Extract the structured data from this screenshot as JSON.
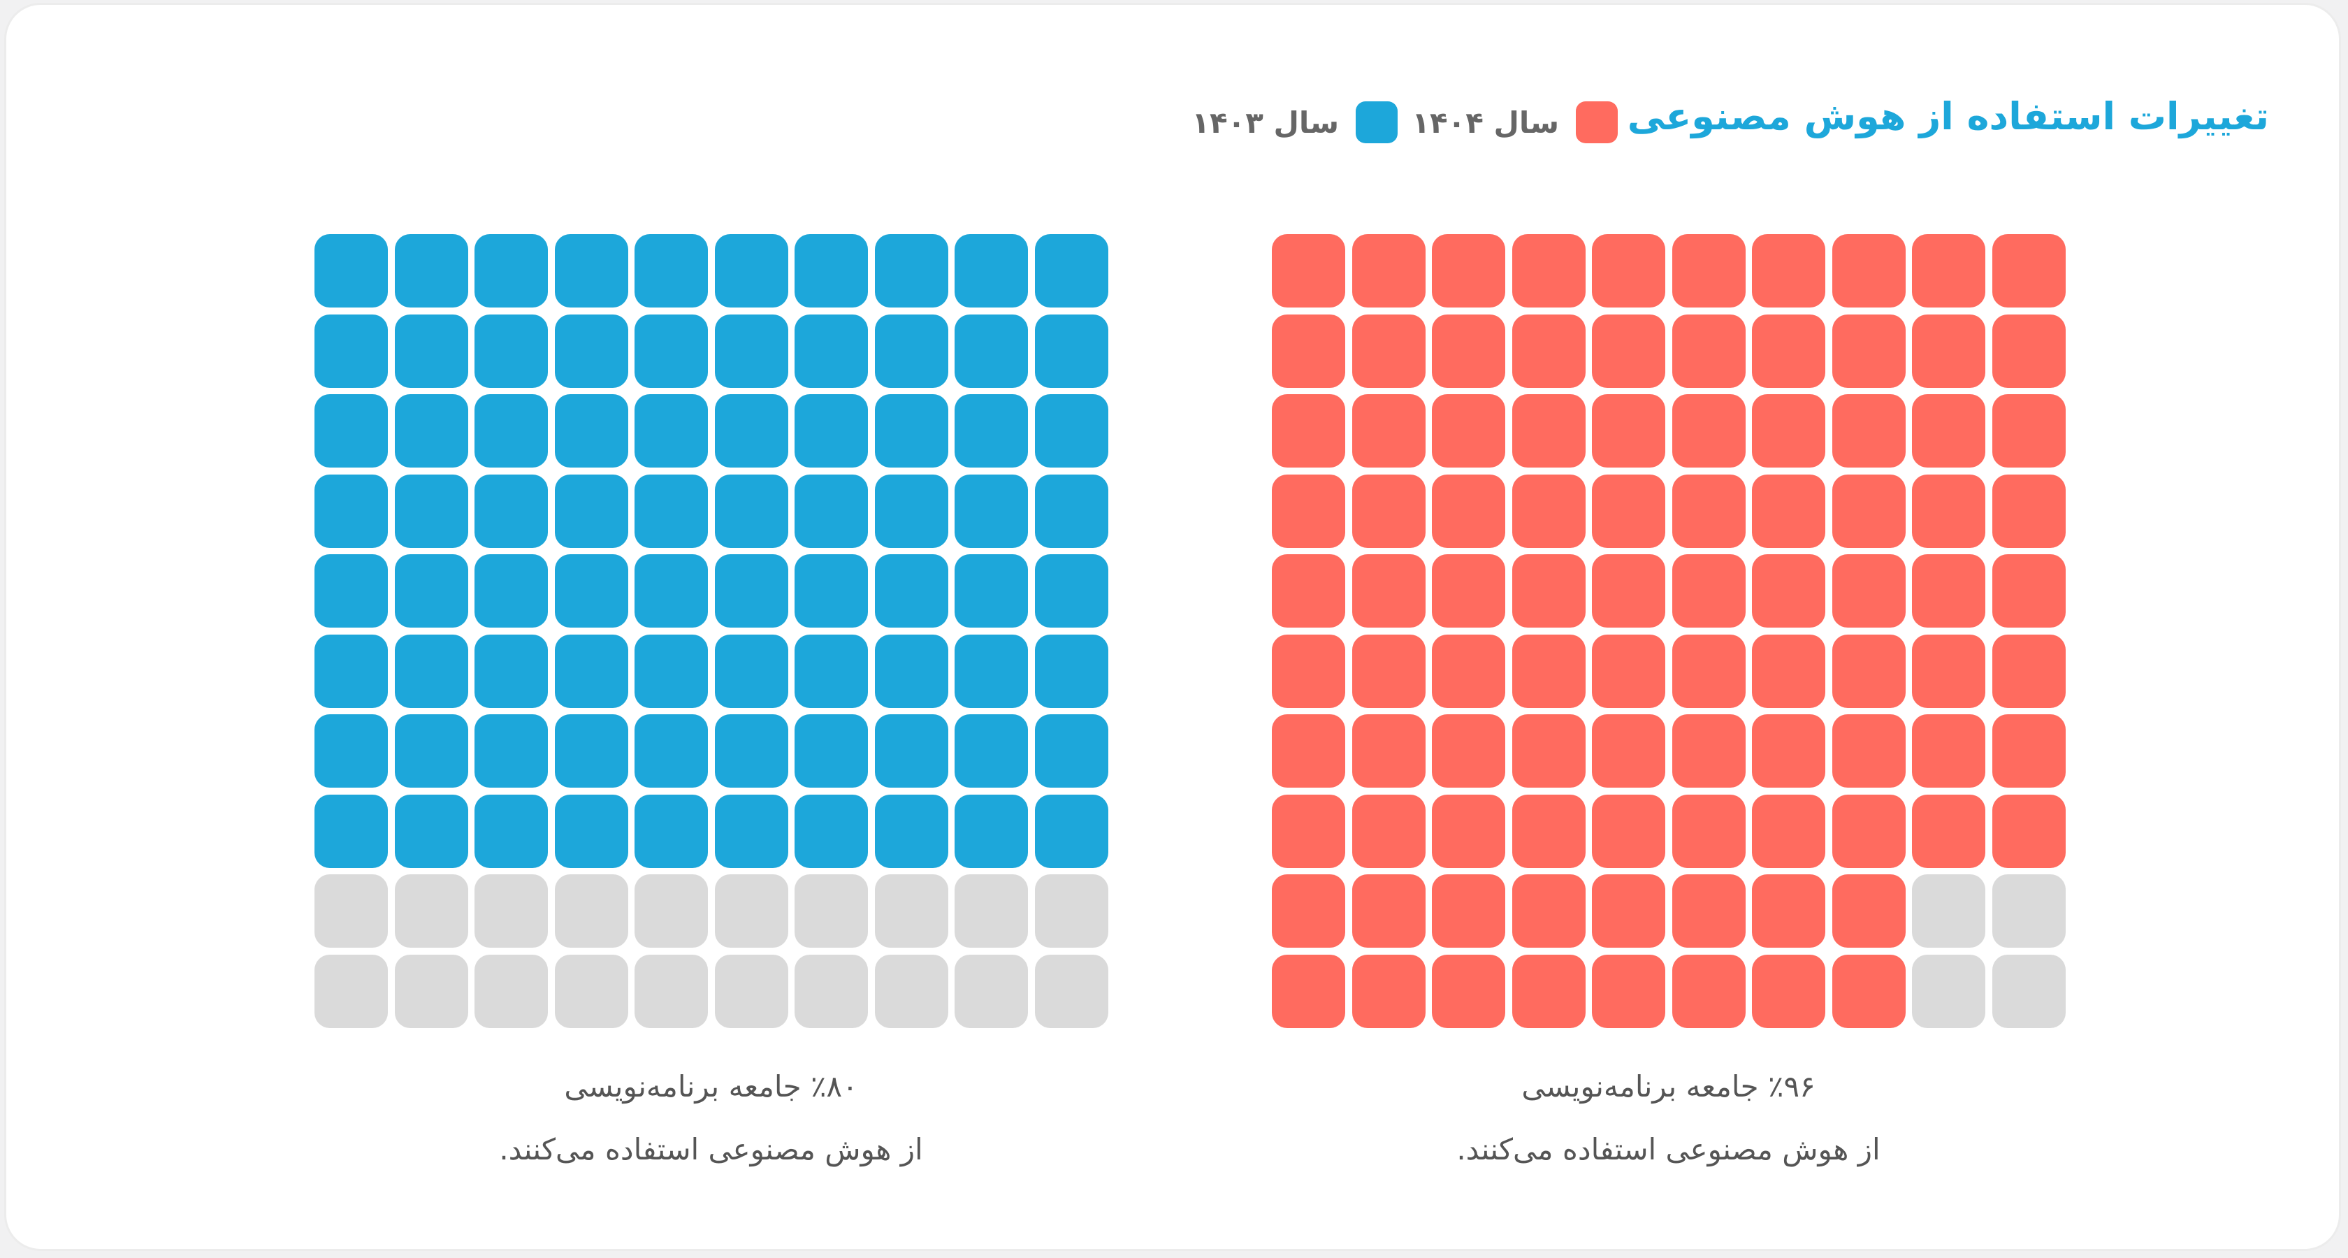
{
  "card": {
    "title": "تغییرات استفاده از هوش مصنوعی"
  },
  "legend": [
    {
      "label": "سال ۱۴۰۴",
      "color": "#ff6b5f"
    },
    {
      "label": "سال ۱۴۰۳",
      "color": "#1da7da"
    }
  ],
  "colors": {
    "empty": "#dadada"
  },
  "chart_data": [
    {
      "type": "waffle",
      "series": "سال ۱۴۰۴",
      "grid": [
        10,
        10
      ],
      "value": 96,
      "total": 100,
      "color": "#ff6b5f",
      "caption_line1": "٪۹۶ جامعه برنامه‌نویسی",
      "caption_line2": "از هوش مصنوعی استفاده می‌کنند."
    },
    {
      "type": "waffle",
      "series": "سال ۱۴۰۳",
      "grid": [
        10,
        10
      ],
      "value": 80,
      "total": 100,
      "color": "#1da7da",
      "caption_line1": "٪۸۰ جامعه برنامه‌نویسی",
      "caption_line2": "از هوش مصنوعی استفاده می‌کنند."
    }
  ]
}
